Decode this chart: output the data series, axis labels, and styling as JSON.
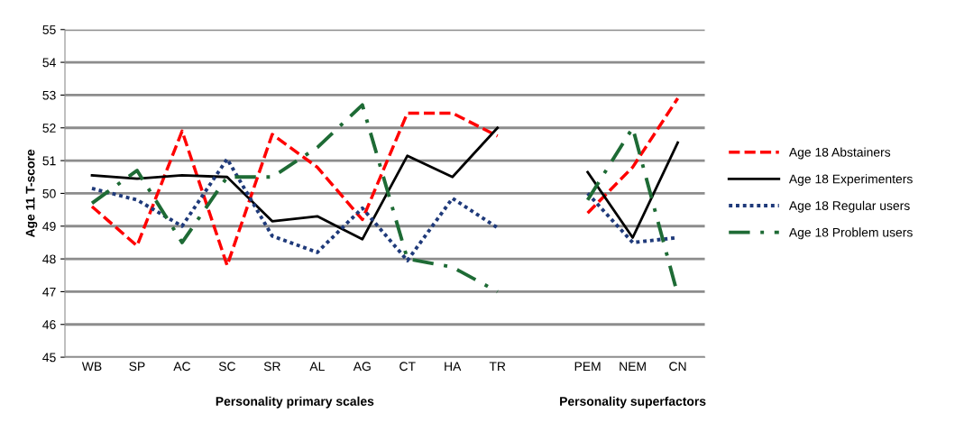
{
  "chart_data": {
    "type": "line",
    "ylabel": "Age 11 T-score",
    "categories": [
      "WB",
      "SP",
      "AC",
      "SC",
      "SR",
      "AL",
      "AG",
      "CT",
      "HA",
      "TR",
      null,
      "PEM",
      "NEM",
      "CN"
    ],
    "series": [
      {
        "name": "Age 18 Abstainers",
        "color": "#ff0000",
        "line_style": "dashed",
        "values": [
          49.6,
          48.4,
          51.9,
          47.8,
          51.8,
          50.8,
          49.2,
          52.45,
          52.45,
          51.75,
          null,
          49.4,
          50.8,
          52.9
        ]
      },
      {
        "name": "Age 18 Experimenters",
        "color": "#000000",
        "line_style": "solid",
        "values": [
          50.55,
          50.45,
          50.55,
          50.5,
          49.15,
          49.3,
          48.6,
          51.15,
          50.5,
          52.0,
          null,
          50.65,
          48.65,
          51.55
        ]
      },
      {
        "name": "Age 18 Regular users",
        "color": "#1f3a7a",
        "line_style": "dotted",
        "values": [
          50.15,
          49.8,
          49.0,
          51.05,
          48.7,
          48.2,
          49.55,
          47.95,
          49.85,
          48.95,
          null,
          50.0,
          48.5,
          48.65
        ]
      },
      {
        "name": "Age 18 Problem users",
        "color": "#1e6b35",
        "line_style": "dashdot",
        "values": [
          49.7,
          50.7,
          48.5,
          50.5,
          50.5,
          51.4,
          52.7,
          48.0,
          47.75,
          47.0,
          null,
          49.8,
          52.0,
          46.9
        ]
      }
    ],
    "ylim": [
      45,
      55
    ],
    "yticks": [
      45,
      46,
      47,
      48,
      49,
      50,
      51,
      52,
      53,
      54,
      55
    ],
    "grid": "y",
    "legend": "right",
    "marker": "none",
    "annotations": [
      "Personality primary scales",
      "Personality superfactors"
    ]
  }
}
